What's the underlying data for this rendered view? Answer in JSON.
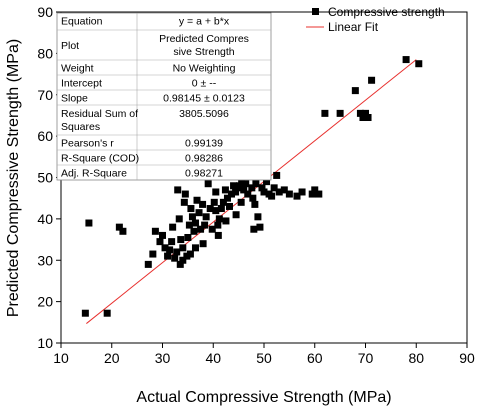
{
  "chart_data": {
    "type": "scatter",
    "xlabel": "Actual Compressive Strength (MPa)",
    "ylabel": "Predicted Compressive Strength (MPa)",
    "xlim": [
      10,
      90
    ],
    "ylim": [
      10,
      90
    ],
    "xticks": [
      "10",
      "20",
      "30",
      "40",
      "50",
      "60",
      "70",
      "80",
      "90"
    ],
    "yticks": [
      "10",
      "20",
      "30",
      "40",
      "50",
      "60",
      "70",
      "80",
      "90"
    ],
    "legend_position": "top-right",
    "series": [
      {
        "name": "Compressive strength",
        "marker": "square",
        "color": "#000000",
        "x": [
          14.8,
          15.5,
          19.1,
          21.5,
          22.2,
          27.2,
          28.1,
          28.6,
          29.5,
          30.0,
          30.5,
          31.0,
          31.4,
          31.8,
          32.0,
          32.4,
          32.8,
          33.0,
          33.3,
          33.6,
          34.0,
          34.3,
          34.5,
          34.8,
          35.0,
          35.3,
          35.6,
          35.9,
          36.2,
          36.5,
          36.8,
          37.2,
          37.5,
          37.9,
          38.3,
          38.6,
          39.0,
          39.4,
          39.8,
          40.2,
          40.5,
          40.9,
          41.2,
          41.6,
          42.0,
          42.4,
          42.8,
          43.2,
          43.6,
          44.0,
          44.4,
          44.8,
          45.2,
          45.6,
          46.0,
          46.4,
          46.8,
          47.2,
          47.6,
          48.0,
          48.4,
          48.8,
          49.2,
          49.6,
          50.0,
          50.5,
          51.0,
          51.5,
          52.0,
          52.5,
          53.0,
          54.0,
          55.0,
          56.5,
          57.5,
          59.5,
          60.0,
          60.8,
          62.0,
          65.0,
          68.0,
          69.0,
          69.5,
          70.0,
          70.5,
          71.2,
          78.0,
          80.5,
          33.5,
          34.0,
          36.5,
          38.0,
          40.5,
          41.0,
          47.8,
          48.2,
          45.5,
          44.5,
          42.5,
          35.5
        ],
        "y": [
          17.2,
          39.0,
          17.2,
          38.0,
          37.0,
          29.0,
          31.5,
          37.0,
          34.5,
          36.0,
          33.0,
          31.0,
          32.5,
          34.5,
          38.0,
          30.5,
          32.0,
          47.0,
          40.0,
          35.0,
          33.0,
          44.0,
          46.0,
          31.0,
          35.5,
          38.5,
          42.5,
          40.5,
          37.0,
          39.0,
          44.5,
          41.5,
          37.5,
          43.5,
          38.5,
          40.5,
          48.5,
          42.5,
          37.5,
          44.0,
          46.5,
          38.5,
          40.0,
          42.5,
          44.0,
          47.0,
          45.0,
          43.0,
          46.0,
          48.0,
          46.5,
          47.5,
          48.0,
          49.5,
          47.0,
          48.5,
          46.0,
          51.0,
          47.5,
          37.5,
          48.5,
          40.5,
          38.0,
          47.5,
          46.5,
          49.0,
          46.0,
          45.5,
          47.5,
          50.5,
          46.5,
          47.0,
          46.0,
          45.5,
          46.5,
          46.0,
          47.0,
          46.0,
          65.5,
          65.5,
          71.0,
          65.5,
          64.5,
          65.5,
          64.5,
          73.5,
          78.5,
          77.5,
          29.0,
          30.0,
          33.0,
          34.0,
          42.0,
          36.0,
          45.0,
          43.5,
          44.0,
          41.0,
          39.5,
          31.5
        ]
      },
      {
        "name": "Linear Fit",
        "type": "line",
        "color": "#e8302e",
        "x": [
          15.0,
          80.0
        ],
        "y": [
          14.7,
          78.5
        ]
      }
    ],
    "stats_table": {
      "rows": [
        [
          "Equation",
          "y = a + b*x"
        ],
        [
          "Plot",
          "Predicted Compres sive Strength"
        ],
        [
          "Weight",
          "No Weighting"
        ],
        [
          "Intercept",
          "0 ± --"
        ],
        [
          "Slope",
          "0.98145 ± 0.0123"
        ],
        [
          "Residual Sum of Squares",
          "3805.5096"
        ],
        [
          "Pearson's r",
          "0.99139"
        ],
        [
          "R-Square (COD)",
          "0.98286"
        ],
        [
          "Adj. R-Square",
          "0.98271"
        ]
      ]
    }
  }
}
